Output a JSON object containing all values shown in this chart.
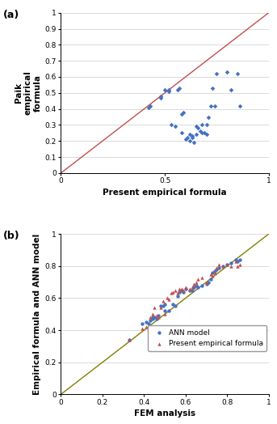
{
  "plot_a": {
    "label": "(a)",
    "scatter_x": [
      0.42,
      0.43,
      0.48,
      0.48,
      0.5,
      0.52,
      0.52,
      0.53,
      0.55,
      0.56,
      0.57,
      0.58,
      0.58,
      0.59,
      0.6,
      0.61,
      0.62,
      0.62,
      0.63,
      0.63,
      0.64,
      0.65,
      0.65,
      0.66,
      0.67,
      0.68,
      0.68,
      0.69,
      0.7,
      0.7,
      0.71,
      0.72,
      0.73,
      0.74,
      0.75,
      0.8,
      0.82,
      0.85,
      0.86
    ],
    "scatter_y": [
      0.41,
      0.42,
      0.47,
      0.48,
      0.52,
      0.51,
      0.52,
      0.3,
      0.29,
      0.52,
      0.53,
      0.25,
      0.37,
      0.38,
      0.21,
      0.22,
      0.2,
      0.24,
      0.22,
      0.23,
      0.19,
      0.24,
      0.29,
      0.28,
      0.26,
      0.3,
      0.25,
      0.25,
      0.24,
      0.3,
      0.35,
      0.42,
      0.53,
      0.42,
      0.62,
      0.63,
      0.52,
      0.62,
      0.42
    ],
    "scatter_color": "#4472C4",
    "line_color": "#C0504D",
    "xlabel": "Present empirical formula",
    "ylabel": "Paik\nempirical\nformula",
    "xlim": [
      0,
      1
    ],
    "ylim": [
      0,
      1
    ],
    "xticks": [
      0,
      0.5,
      1
    ],
    "yticks": [
      0,
      0.1,
      0.2,
      0.3,
      0.4,
      0.5,
      0.6,
      0.7,
      0.8,
      0.9,
      1
    ]
  },
  "plot_b": {
    "label": "(b)",
    "ann_x": [
      0.33,
      0.39,
      0.41,
      0.42,
      0.43,
      0.44,
      0.44,
      0.45,
      0.46,
      0.47,
      0.48,
      0.49,
      0.5,
      0.5,
      0.52,
      0.54,
      0.55,
      0.56,
      0.57,
      0.58,
      0.59,
      0.6,
      0.62,
      0.63,
      0.64,
      0.65,
      0.66,
      0.68,
      0.7,
      0.71,
      0.72,
      0.73,
      0.74,
      0.75,
      0.76,
      0.78,
      0.8,
      0.82,
      0.84,
      0.85,
      0.86
    ],
    "ann_y": [
      0.34,
      0.44,
      0.45,
      0.44,
      0.46,
      0.47,
      0.48,
      0.48,
      0.47,
      0.49,
      0.55,
      0.55,
      0.52,
      0.56,
      0.52,
      0.56,
      0.55,
      0.61,
      0.64,
      0.65,
      0.64,
      0.66,
      0.65,
      0.65,
      0.67,
      0.68,
      0.67,
      0.68,
      0.69,
      0.7,
      0.72,
      0.76,
      0.77,
      0.78,
      0.79,
      0.8,
      0.81,
      0.82,
      0.84,
      0.83,
      0.84
    ],
    "pef_x": [
      0.33,
      0.39,
      0.41,
      0.42,
      0.43,
      0.44,
      0.45,
      0.46,
      0.47,
      0.48,
      0.49,
      0.5,
      0.51,
      0.52,
      0.53,
      0.54,
      0.55,
      0.56,
      0.57,
      0.58,
      0.59,
      0.6,
      0.62,
      0.63,
      0.64,
      0.65,
      0.66,
      0.68,
      0.7,
      0.72,
      0.73,
      0.74,
      0.75,
      0.76,
      0.78,
      0.8,
      0.82,
      0.84,
      0.85,
      0.86
    ],
    "pef_y": [
      0.34,
      0.41,
      0.42,
      0.42,
      0.48,
      0.5,
      0.54,
      0.49,
      0.48,
      0.54,
      0.58,
      0.5,
      0.6,
      0.59,
      0.63,
      0.64,
      0.65,
      0.63,
      0.66,
      0.66,
      0.65,
      0.67,
      0.66,
      0.67,
      0.69,
      0.7,
      0.72,
      0.73,
      0.7,
      0.75,
      0.74,
      0.76,
      0.79,
      0.81,
      0.8,
      0.81,
      0.8,
      0.83,
      0.8,
      0.81
    ],
    "ann_color": "#4472C4",
    "pef_color": "#C0504D",
    "line_color": "#808000",
    "xlabel": "FEM analysis",
    "ylabel": "Empirical formula and ANN model",
    "xlim": [
      0,
      1
    ],
    "ylim": [
      0,
      1
    ],
    "xticks": [
      0,
      0.2,
      0.4,
      0.6,
      0.8,
      1
    ],
    "yticks": [
      0,
      0.2,
      0.4,
      0.6,
      0.8,
      1
    ],
    "legend_ann": "ANN model",
    "legend_pef": "Present empirical formula"
  },
  "bg_color": "#ffffff",
  "grid_color": "#cccccc",
  "tick_fontsize": 6.5,
  "label_fontsize": 7.5,
  "legend_fontsize": 6.5
}
